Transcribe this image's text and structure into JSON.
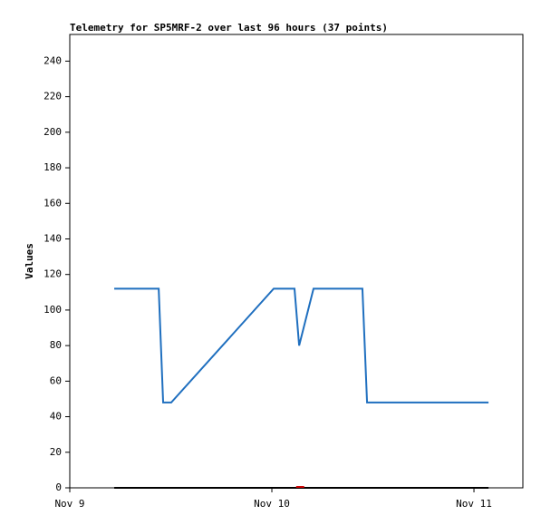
{
  "chart_data": {
    "type": "line",
    "title": "Telemetry for SP5MRF-2 over last 96 hours (37 points)",
    "ylabel": "Values",
    "xlim": [
      0,
      2.242
    ],
    "xticks": [
      {
        "value": 0,
        "label": "Nov 9"
      },
      {
        "value": 1,
        "label": "Nov 10"
      },
      {
        "value": 2,
        "label": "Nov 11"
      }
    ],
    "ylim": [
      0,
      255
    ],
    "yticks": [
      0,
      20,
      40,
      60,
      80,
      100,
      120,
      140,
      160,
      180,
      200,
      220,
      240
    ],
    "series": [
      {
        "color": "#000000",
        "x": [
          0.22,
          2.072
        ],
        "values": [
          0,
          0
        ]
      },
      {
        "color": "#cc0000",
        "x": [
          1.12,
          1.16
        ],
        "values": [
          0.5,
          0.5
        ]
      },
      {
        "color": "#1f6fbf",
        "x": [
          0.22,
          0.44,
          0.462,
          0.502,
          1.009,
          1.112,
          1.135,
          1.206,
          1.448,
          1.471,
          2.072
        ],
        "values": [
          112,
          112,
          48,
          48,
          112,
          112,
          80,
          112,
          112,
          48,
          48
        ]
      }
    ]
  }
}
